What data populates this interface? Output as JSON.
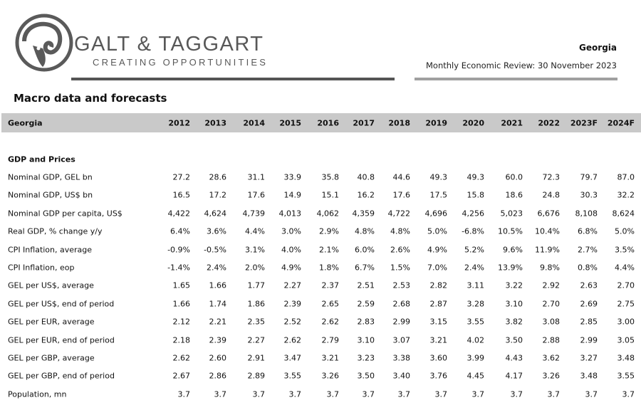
{
  "header": {
    "brand": "GALT & TAGGART",
    "tagline": "CREATING OPPORTUNITIES",
    "country": "Georgia",
    "report": "Monthly Economic Review: 30 November 2023"
  },
  "section_title": "Macro data and forecasts",
  "table": {
    "columns": [
      "Georgia",
      "2012",
      "2013",
      "2014",
      "2015",
      "2016",
      "2017",
      "2018",
      "2019",
      "2020",
      "2021",
      "2022",
      "2023F",
      "2024F"
    ],
    "group": "GDP and Prices",
    "rows": [
      [
        "Nominal GDP, GEL bn",
        "27.2",
        "28.6",
        "31.1",
        "33.9",
        "35.8",
        "40.8",
        "44.6",
        "49.3",
        "49.3",
        "60.0",
        "72.3",
        "79.7",
        "87.0"
      ],
      [
        "Nominal GDP, US$ bn",
        "16.5",
        "17.2",
        "17.6",
        "14.9",
        "15.1",
        "16.2",
        "17.6",
        "17.5",
        "15.8",
        "18.6",
        "24.8",
        "30.3",
        "32.2"
      ],
      [
        "Nominal GDP per capita, US$",
        "4,422",
        "4,624",
        "4,739",
        "4,013",
        "4,062",
        "4,359",
        "4,722",
        "4,696",
        "4,256",
        "5,023",
        "6,676",
        "8,108",
        "8,624"
      ],
      [
        "Real GDP, % change y/y",
        "6.4%",
        "3.6%",
        "4.4%",
        "3.0%",
        "2.9%",
        "4.8%",
        "4.8%",
        "5.0%",
        "-6.8%",
        "10.5%",
        "10.4%",
        "6.8%",
        "5.0%"
      ],
      [
        "CPI Inflation, average",
        "-0.9%",
        "-0.5%",
        "3.1%",
        "4.0%",
        "2.1%",
        "6.0%",
        "2.6%",
        "4.9%",
        "5.2%",
        "9.6%",
        "11.9%",
        "2.7%",
        "3.5%"
      ],
      [
        "CPI Inflation, eop",
        "-1.4%",
        "2.4%",
        "2.0%",
        "4.9%",
        "1.8%",
        "6.7%",
        "1.5%",
        "7.0%",
        "2.4%",
        "13.9%",
        "9.8%",
        "0.8%",
        "4.4%"
      ],
      [
        "GEL per US$, average",
        "1.65",
        "1.66",
        "1.77",
        "2.27",
        "2.37",
        "2.51",
        "2.53",
        "2.82",
        "3.11",
        "3.22",
        "2.92",
        "2.63",
        "2.70"
      ],
      [
        "GEL per US$, end of period",
        "1.66",
        "1.74",
        "1.86",
        "2.39",
        "2.65",
        "2.59",
        "2.68",
        "2.87",
        "3.28",
        "3.10",
        "2.70",
        "2.69",
        "2.75"
      ],
      [
        "GEL per EUR, average",
        "2.12",
        "2.21",
        "2.35",
        "2.52",
        "2.62",
        "2.83",
        "2.99",
        "3.15",
        "3.55",
        "3.82",
        "3.08",
        "2.85",
        "3.00"
      ],
      [
        "GEL per EUR, end of period",
        "2.18",
        "2.39",
        "2.27",
        "2.62",
        "2.79",
        "3.10",
        "3.07",
        "3.21",
        "4.02",
        "3.50",
        "2.88",
        "2.99",
        "3.05"
      ],
      [
        "GEL per GBP, average",
        "2.62",
        "2.60",
        "2.91",
        "3.47",
        "3.21",
        "3.23",
        "3.38",
        "3.60",
        "3.99",
        "4.43",
        "3.62",
        "3.27",
        "3.48"
      ],
      [
        "GEL per GBP, end of period",
        "2.67",
        "2.86",
        "2.89",
        "3.55",
        "3.26",
        "3.50",
        "3.40",
        "3.76",
        "4.45",
        "4.17",
        "3.26",
        "3.48",
        "3.55"
      ],
      [
        "Population, mn",
        "3.7",
        "3.7",
        "3.7",
        "3.7",
        "3.7",
        "3.7",
        "3.7",
        "3.7",
        "3.7",
        "3.7",
        "3.7",
        "3.7",
        "3.7"
      ]
    ]
  }
}
